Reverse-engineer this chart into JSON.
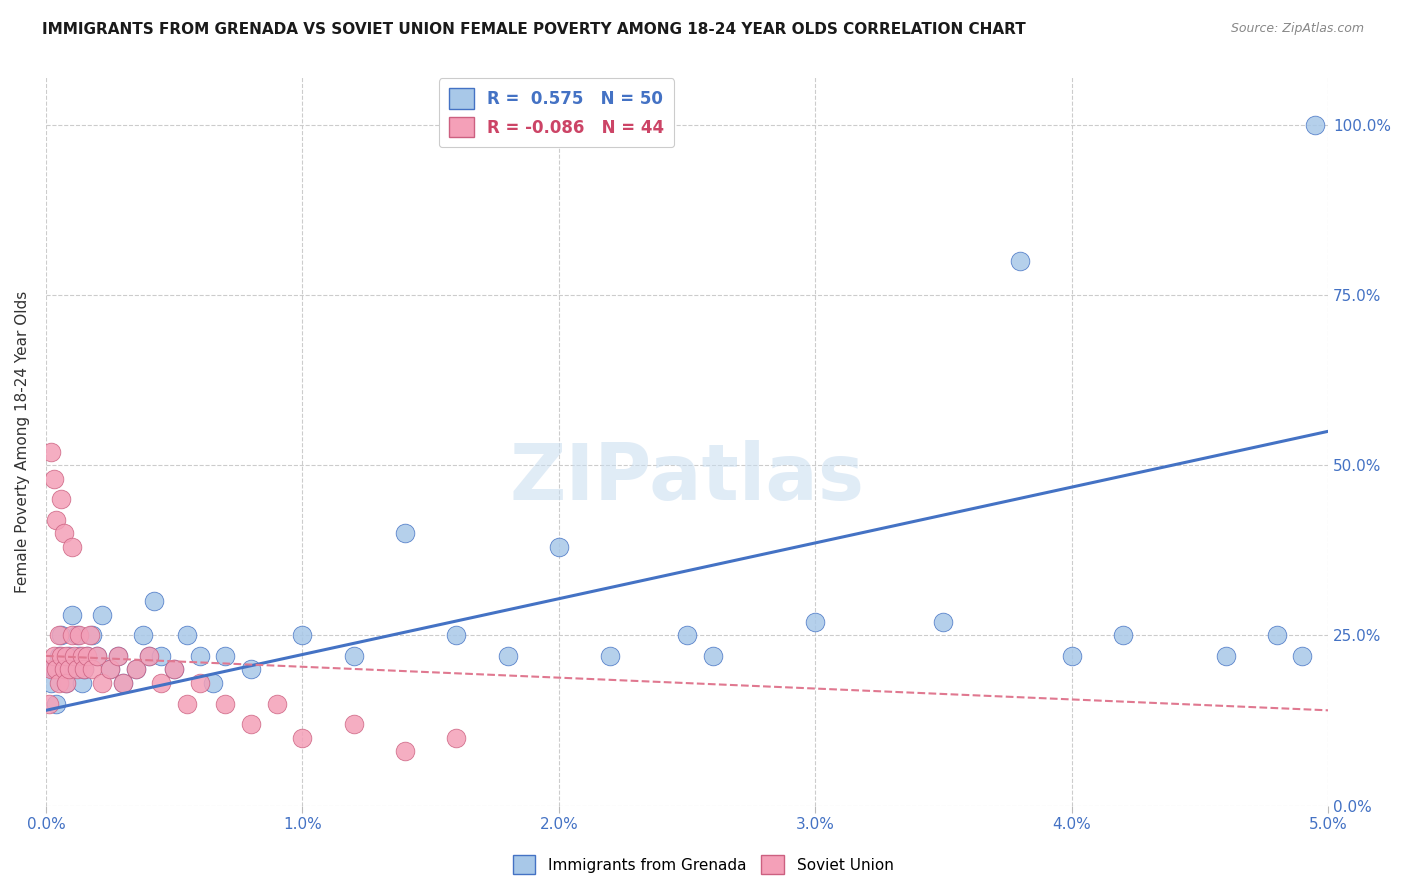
{
  "title": "IMMIGRANTS FROM GRENADA VS SOVIET UNION FEMALE POVERTY AMONG 18-24 YEAR OLDS CORRELATION CHART",
  "source": "Source: ZipAtlas.com",
  "ylabel": "Female Poverty Among 18-24 Year Olds",
  "grenada_R": 0.575,
  "grenada_N": 50,
  "soviet_R": -0.086,
  "soviet_N": 44,
  "grenada_color": "#a8c8e8",
  "soviet_color": "#f4a0b8",
  "grenada_line_color": "#4472c4",
  "soviet_line_color": "#e07890",
  "background_color": "#ffffff",
  "x_ticks": [
    0.0,
    1.0,
    2.0,
    3.0,
    4.0,
    5.0
  ],
  "y_ticks": [
    0.0,
    25.0,
    50.0,
    75.0,
    100.0
  ],
  "xlim": [
    0,
    5.0
  ],
  "ylim": [
    0,
    107
  ],
  "grenada_x": [
    0.02,
    0.03,
    0.04,
    0.05,
    0.06,
    0.07,
    0.08,
    0.09,
    0.1,
    0.11,
    0.12,
    0.13,
    0.14,
    0.15,
    0.16,
    0.18,
    0.2,
    0.22,
    0.25,
    0.28,
    0.3,
    0.35,
    0.38,
    0.4,
    0.42,
    0.45,
    0.5,
    0.55,
    0.6,
    0.65,
    0.7,
    0.8,
    1.0,
    1.2,
    1.4,
    1.6,
    1.8,
    2.0,
    2.2,
    2.5,
    2.6,
    3.0,
    3.5,
    3.8,
    4.0,
    4.2,
    4.6,
    4.8,
    4.9,
    4.95
  ],
  "grenada_y": [
    18.0,
    20.0,
    15.0,
    22.0,
    25.0,
    20.0,
    18.0,
    22.0,
    28.0,
    20.0,
    25.0,
    22.0,
    18.0,
    20.0,
    22.0,
    25.0,
    22.0,
    28.0,
    20.0,
    22.0,
    18.0,
    20.0,
    25.0,
    22.0,
    30.0,
    22.0,
    20.0,
    25.0,
    22.0,
    18.0,
    22.0,
    20.0,
    25.0,
    22.0,
    40.0,
    25.0,
    22.0,
    38.0,
    22.0,
    25.0,
    22.0,
    27.0,
    27.0,
    80.0,
    22.0,
    25.0,
    22.0,
    25.0,
    22.0,
    100.0
  ],
  "soviet_x": [
    0.01,
    0.02,
    0.02,
    0.03,
    0.03,
    0.04,
    0.04,
    0.05,
    0.05,
    0.06,
    0.06,
    0.07,
    0.07,
    0.08,
    0.08,
    0.09,
    0.1,
    0.1,
    0.11,
    0.12,
    0.13,
    0.14,
    0.15,
    0.16,
    0.17,
    0.18,
    0.2,
    0.22,
    0.25,
    0.28,
    0.3,
    0.35,
    0.4,
    0.45,
    0.5,
    0.55,
    0.6,
    0.7,
    0.8,
    0.9,
    1.0,
    1.2,
    1.4,
    1.6
  ],
  "soviet_y": [
    15.0,
    52.0,
    20.0,
    48.0,
    22.0,
    20.0,
    42.0,
    18.0,
    25.0,
    45.0,
    22.0,
    20.0,
    40.0,
    18.0,
    22.0,
    20.0,
    25.0,
    38.0,
    22.0,
    20.0,
    25.0,
    22.0,
    20.0,
    22.0,
    25.0,
    20.0,
    22.0,
    18.0,
    20.0,
    22.0,
    18.0,
    20.0,
    22.0,
    18.0,
    20.0,
    15.0,
    18.0,
    15.0,
    12.0,
    15.0,
    10.0,
    12.0,
    8.0,
    10.0
  ],
  "grenada_line_x0": 0.0,
  "grenada_line_y0": 14.0,
  "grenada_line_x1": 5.0,
  "grenada_line_y1": 55.0,
  "soviet_line_x0": 0.0,
  "soviet_line_y0": 22.0,
  "soviet_line_x1": 5.0,
  "soviet_line_y1": 14.0
}
